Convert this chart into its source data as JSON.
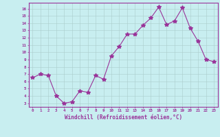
{
  "x": [
    0,
    1,
    2,
    3,
    4,
    5,
    6,
    7,
    8,
    9,
    10,
    11,
    12,
    13,
    14,
    15,
    16,
    17,
    18,
    19,
    20,
    21,
    22,
    23
  ],
  "y": [
    6.5,
    7.0,
    6.8,
    4.0,
    3.0,
    3.2,
    4.7,
    4.5,
    6.8,
    6.3,
    9.5,
    10.8,
    12.5,
    12.5,
    13.7,
    14.7,
    16.2,
    13.8,
    14.3,
    16.1,
    13.3,
    11.5,
    9.0,
    8.7
  ],
  "line_color": "#993399",
  "marker": "*",
  "markersize": 4,
  "linewidth": 0.8,
  "bg_color": "#c8eef0",
  "grid_color": "#aacccc",
  "ylabel_values": [
    3,
    4,
    5,
    6,
    7,
    8,
    9,
    10,
    11,
    12,
    13,
    14,
    15,
    16
  ],
  "ylim": [
    2.5,
    16.8
  ],
  "xlim": [
    -0.5,
    23.5
  ],
  "xlabel": "Windchill (Refroidissement éolien,°C)",
  "xlabel_color": "#993399",
  "tick_color": "#993399",
  "axis_color": "#993399",
  "grid_linewidth": 0.4,
  "tick_fontsize": 4.2,
  "xlabel_fontsize": 5.5,
  "figsize": [
    3.2,
    2.0
  ],
  "dpi": 100
}
